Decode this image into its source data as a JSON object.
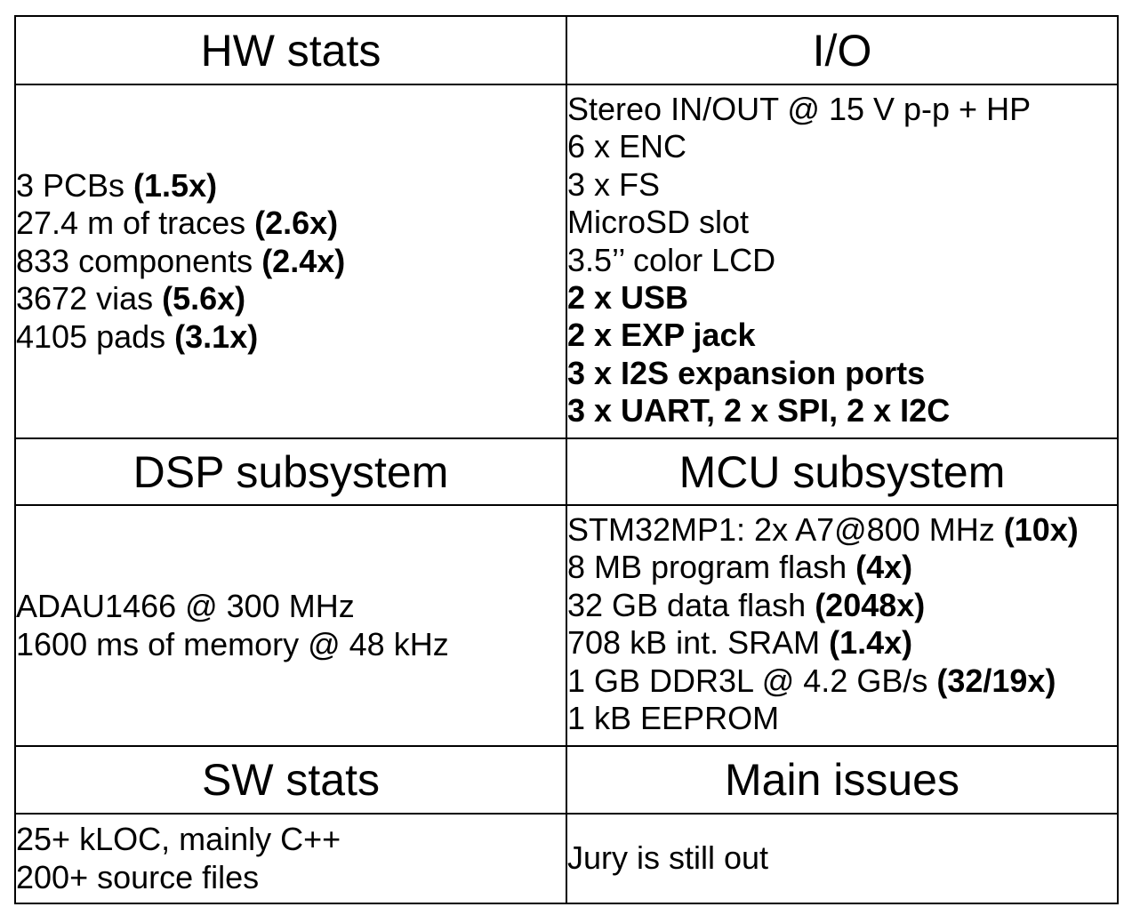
{
  "hw_stats": {
    "title": "HW stats",
    "lines": [
      {
        "text": "3 PCBs ",
        "bold": "(1.5x)"
      },
      {
        "text": "27.4 m of traces ",
        "bold": "(2.6x)"
      },
      {
        "text": "833 components ",
        "bold": "(2.4x)"
      },
      {
        "text": "3672 vias ",
        "bold": "(5.6x)"
      },
      {
        "text": "4105 pads ",
        "bold": "(3.1x)"
      }
    ]
  },
  "io": {
    "title": "I/O",
    "lines": [
      "Stereo IN/OUT @ 15 V p-p + HP",
      "6 x ENC",
      "3 x FS",
      "MicroSD slot",
      "3.5’’ color LCD"
    ],
    "bold_lines": [
      "2 x USB",
      "2 x EXP jack",
      "3 x I2S expansion ports",
      "3 x UART, 2 x SPI, 2 x I2C"
    ]
  },
  "dsp": {
    "title": "DSP subsystem",
    "lines": [
      "ADAU1466 @ 300 MHz",
      "1600 ms of memory @ 48 kHz"
    ]
  },
  "mcu": {
    "title": "MCU subsystem",
    "lines": [
      {
        "text": "STM32MP1: 2x A7@800 MHz ",
        "bold": "(10x)"
      },
      {
        "text": "8 MB program flash ",
        "bold": "(4x)"
      },
      {
        "text": "32 GB data flash ",
        "bold": "(2048x)"
      },
      {
        "text": "708 kB int. SRAM ",
        "bold": "(1.4x)"
      },
      {
        "text": "1 GB DDR3L @ 4.2 GB/s ",
        "bold": "(32/19x)"
      },
      {
        "text": "1 kB EEPROM",
        "bold": ""
      }
    ]
  },
  "sw_stats": {
    "title": "SW stats",
    "lines": [
      "25+ kLOC, mainly C++",
      "200+ source files"
    ]
  },
  "main_issues": {
    "title": "Main issues",
    "lines": [
      "Jury is still out"
    ]
  }
}
